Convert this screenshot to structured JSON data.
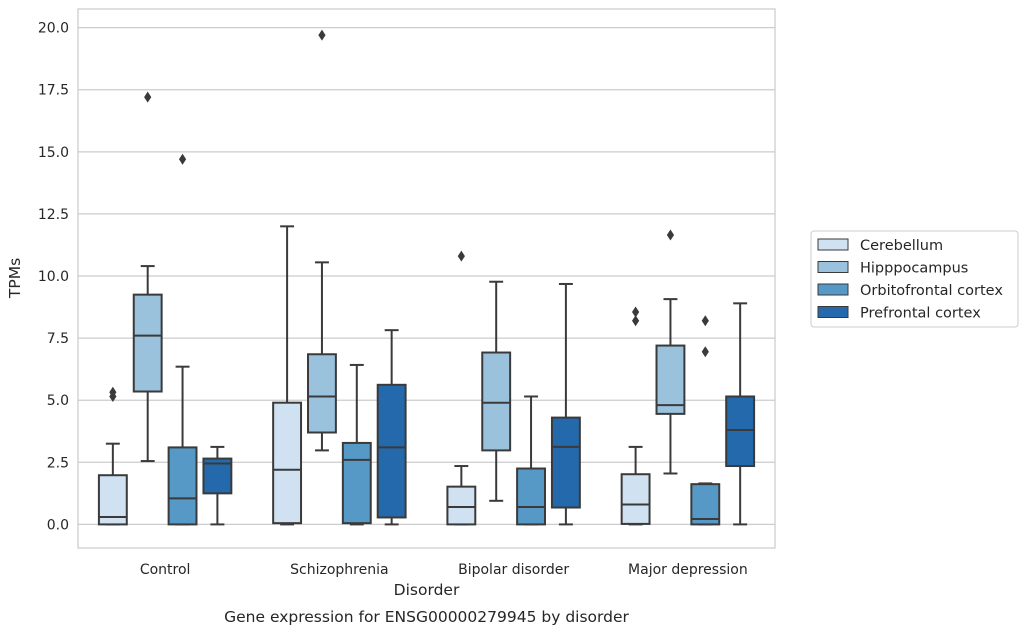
{
  "chart_data": {
    "type": "box",
    "title": "Gene expression for ENSG00000279945 by disorder",
    "xlabel": "Disorder",
    "ylabel": "TPMs",
    "ylim": [
      -0.95,
      20.75
    ],
    "yticks": [
      "0.0",
      "2.5",
      "5.0",
      "7.5",
      "10.0",
      "12.5",
      "15.0",
      "17.5",
      "20.0"
    ],
    "ytick_values": [
      0,
      2.5,
      5,
      7.5,
      10,
      12.5,
      15,
      17.5,
      20
    ],
    "grid": "horizontal",
    "legend_position": "right",
    "categories": [
      "Control",
      "Schizophrenia",
      "Bipolar disorder",
      "Major depression"
    ],
    "series": [
      {
        "name": "Cerebellum",
        "color": "#d0e1f2",
        "boxes": [
          {
            "low": 0.0,
            "q1": 0.0,
            "median": 0.3,
            "q3": 1.98,
            "high": 3.25,
            "outliers": [
              5.15,
              5.32
            ]
          },
          {
            "low": 0.0,
            "q1": 0.05,
            "median": 2.2,
            "q3": 4.9,
            "high": 12.0,
            "outliers": []
          },
          {
            "low": 0.0,
            "q1": 0.0,
            "median": 0.7,
            "q3": 1.52,
            "high": 2.35,
            "outliers": [
              10.8
            ]
          },
          {
            "low": 0.0,
            "q1": 0.02,
            "median": 0.8,
            "q3": 2.02,
            "high": 3.12,
            "outliers": [
              8.2,
              8.55
            ]
          }
        ]
      },
      {
        "name": "Hipppocampus",
        "color": "#9ac2dc",
        "boxes": [
          {
            "low": 2.55,
            "q1": 5.35,
            "median": 7.6,
            "q3": 9.25,
            "high": 10.4,
            "outliers": [
              17.2
            ]
          },
          {
            "low": 2.98,
            "q1": 3.7,
            "median": 5.15,
            "q3": 6.85,
            "high": 10.55,
            "outliers": [
              19.7
            ]
          },
          {
            "low": 0.95,
            "q1": 2.98,
            "median": 4.9,
            "q3": 6.92,
            "high": 9.77,
            "outliers": []
          },
          {
            "low": 2.05,
            "q1": 4.45,
            "median": 4.8,
            "q3": 7.2,
            "high": 9.07,
            "outliers": [
              11.65
            ]
          }
        ]
      },
      {
        "name": "Orbitofrontal cortex",
        "color": "#5799c6",
        "boxes": [
          {
            "low": 0.0,
            "q1": 0.0,
            "median": 1.05,
            "q3": 3.1,
            "high": 6.35,
            "outliers": [
              14.7
            ]
          },
          {
            "low": 0.0,
            "q1": 0.05,
            "median": 2.6,
            "q3": 3.28,
            "high": 6.42,
            "outliers": []
          },
          {
            "low": 0.0,
            "q1": 0.0,
            "median": 0.7,
            "q3": 2.25,
            "high": 5.15,
            "outliers": []
          },
          {
            "low": 0.0,
            "q1": 0.0,
            "median": 0.22,
            "q3": 1.62,
            "high": 1.65,
            "outliers": [
              6.95,
              8.2
            ]
          }
        ]
      },
      {
        "name": "Prefrontal cortex",
        "color": "#2369ab",
        "boxes": [
          {
            "low": 0.0,
            "q1": 1.25,
            "median": 2.45,
            "q3": 2.65,
            "high": 3.12,
            "outliers": []
          },
          {
            "low": 0.0,
            "q1": 0.28,
            "median": 3.1,
            "q3": 5.62,
            "high": 7.82,
            "outliers": []
          },
          {
            "low": 0.0,
            "q1": 0.68,
            "median": 3.12,
            "q3": 4.3,
            "high": 9.68,
            "outliers": []
          },
          {
            "low": 0.0,
            "q1": 2.35,
            "median": 3.8,
            "q3": 5.15,
            "high": 8.9,
            "outliers": []
          }
        ]
      }
    ]
  }
}
